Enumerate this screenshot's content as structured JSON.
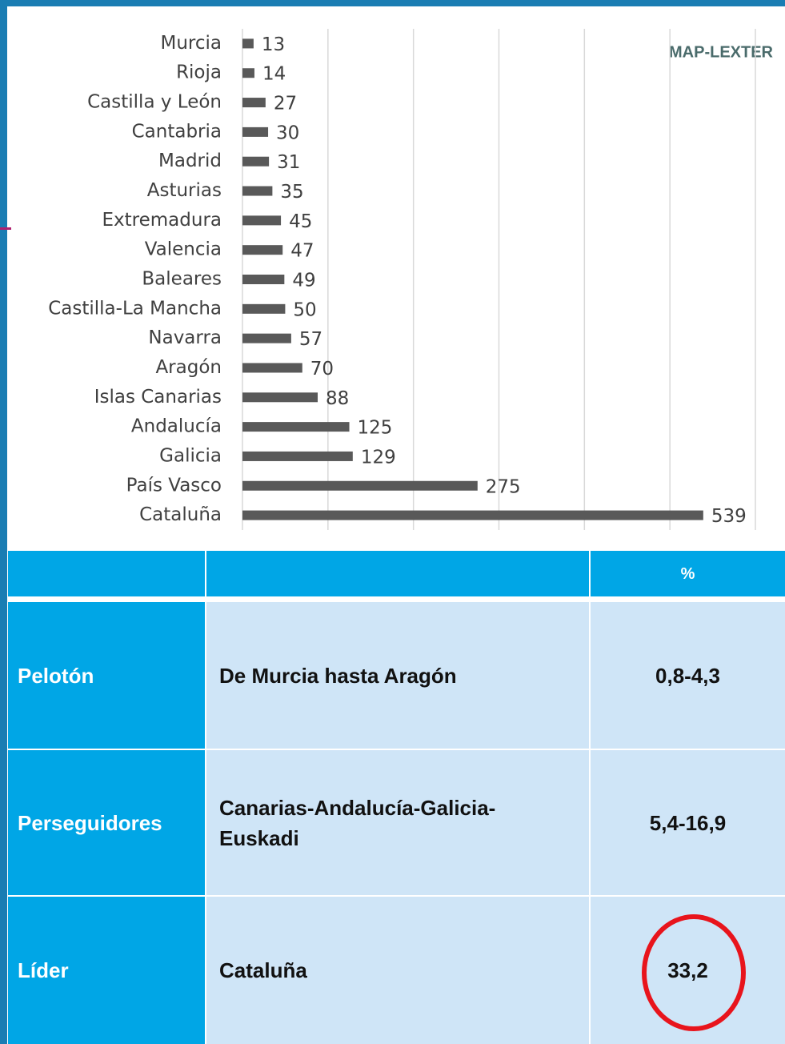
{
  "chart_data": {
    "type": "bar",
    "orientation": "horizontal",
    "annotation": "MAP-LEXTER",
    "categories": [
      "Murcia",
      "Rioja",
      "Castilla y León",
      "Cantabria",
      "Madrid",
      "Asturias",
      "Extremadura",
      "Valencia",
      "Baleares",
      "Castilla-La Mancha",
      "Navarra",
      "Aragón",
      "Islas Canarias",
      "Andalucía",
      "Galicia",
      "País Vasco",
      "Cataluña"
    ],
    "values": [
      13,
      14,
      27,
      30,
      31,
      35,
      45,
      47,
      49,
      50,
      57,
      70,
      88,
      125,
      129,
      275,
      539
    ],
    "color": "#595959",
    "xlim": [
      0,
      600
    ],
    "xticks": [
      0,
      100,
      200,
      300,
      400,
      500,
      600
    ],
    "grid": true
  },
  "table": {
    "header": [
      "%"
    ],
    "rows": [
      [
        "Pelotón",
        "De Murcia hasta Aragón",
        "0,8-4,3"
      ],
      [
        "Perseguidores",
        "Canarias-Andalucía-Galicia-Euskadi",
        "5,4-16,9"
      ],
      [
        "Líder",
        "Cataluña",
        "33,2"
      ]
    ]
  }
}
